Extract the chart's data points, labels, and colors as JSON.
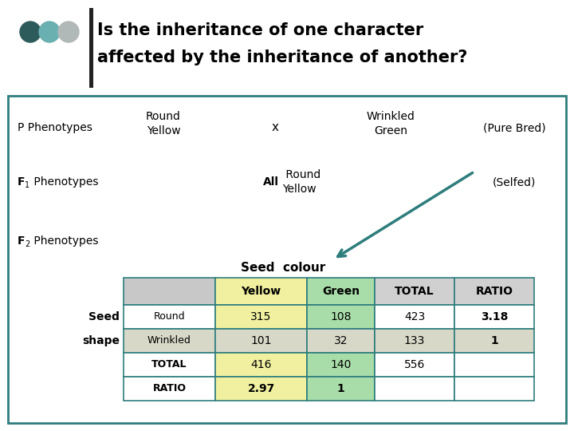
{
  "title_line1": "Is the inheritance of one character",
  "title_line2": "affected by the inheritance of another?",
  "background_color": "#ffffff",
  "outer_box_color": "#2e7d7d",
  "dot_colors": [
    "#2d5a5a",
    "#6ab0b0",
    "#b0b8b8"
  ],
  "p_left": "Round\nYellow",
  "p_cross": "x",
  "p_right": "Wrinkled\nGreen",
  "p_note": "(Pure Bred)",
  "f1_note": "(Selfed)",
  "seed_colour_label": "Seed  colour",
  "table_headers": [
    "",
    "Yellow",
    "Green",
    "TOTAL",
    "RATIO"
  ],
  "table_row_labels": [
    "Round",
    "Wrinkled",
    "TOTAL",
    "RATIO"
  ],
  "seed_label": "Seed",
  "shape_label": "shape",
  "table_data": [
    [
      "315",
      "108",
      "423",
      "3.18"
    ],
    [
      "101",
      "32",
      "133",
      "1"
    ],
    [
      "416",
      "140",
      "556",
      ""
    ],
    [
      "2.97",
      "1",
      "",
      ""
    ]
  ],
  "yellow_col_color": "#f0f0a0",
  "green_col_color": "#a8dca8",
  "wrinkled_row_color": "#d8d8c8",
  "header_row_color": "#c8c8c8",
  "table_border_color": "#2e7d7d",
  "arrow_color": "#2e7d7d"
}
